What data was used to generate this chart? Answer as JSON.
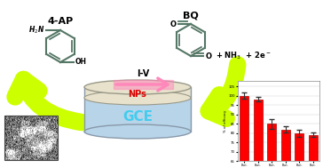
{
  "title_4ap": "4-AP",
  "title_bq": "BQ",
  "label_iv": "I-V",
  "label_nps": "NPs",
  "label_gce": "GCE",
  "bar_values": [
    100,
    98,
    85,
    82,
    80,
    79
  ],
  "bar_color": "#ff0000",
  "ylabel_bar": "% of efficacy",
  "background": "#ffffff",
  "arrow_color_pink": "#ff88bb",
  "arrow_color_yellow": "#ccff00",
  "gce_body_color": "#b8d4e8",
  "gce_edge_color": "#8899aa",
  "nps_color": "#e8e2cc",
  "nps_edge_color": "#999988",
  "gce_text_color": "#44ccee",
  "nps_text_color": "#dd0000",
  "mol_color": "#557766"
}
